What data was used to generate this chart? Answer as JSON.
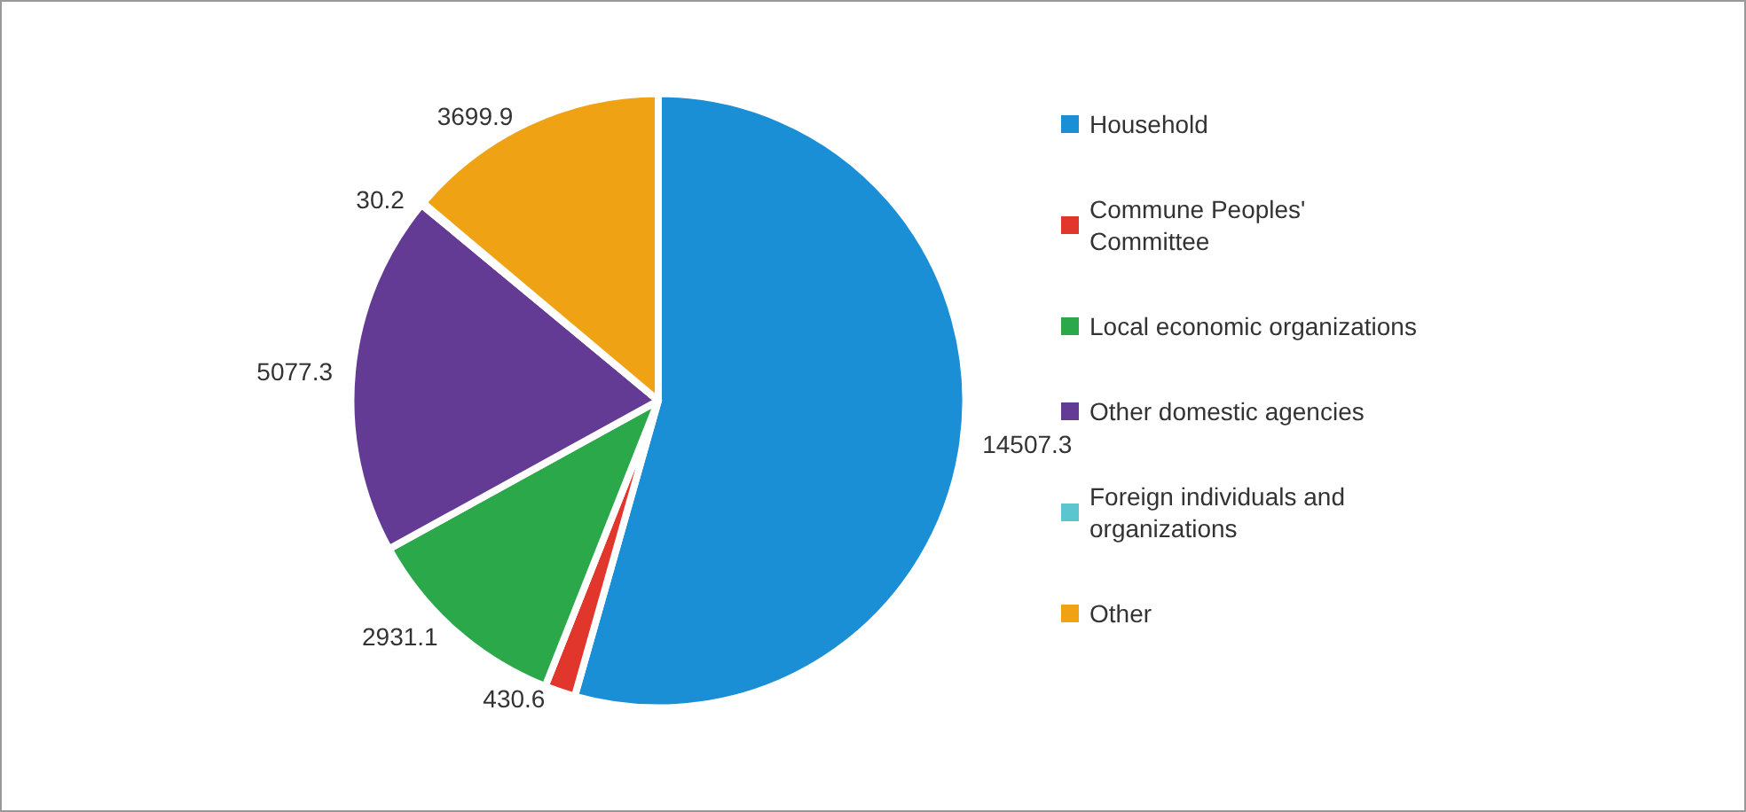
{
  "chart_data": {
    "type": "pie",
    "categories": [
      "Household",
      "Commune Peoples' Committee",
      "Local economic organizations",
      "Other domestic agencies",
      "Foreign individuals and organizations",
      "Other"
    ],
    "values": [
      14507.3,
      430.6,
      2931.1,
      5077.3,
      30.2,
      3699.9
    ],
    "colors": [
      "#1a8fd6",
      "#e0362c",
      "#2aa84a",
      "#633a94",
      "#5cc6cf",
      "#f0a215"
    ],
    "data_labels": true,
    "legend": "right"
  }
}
